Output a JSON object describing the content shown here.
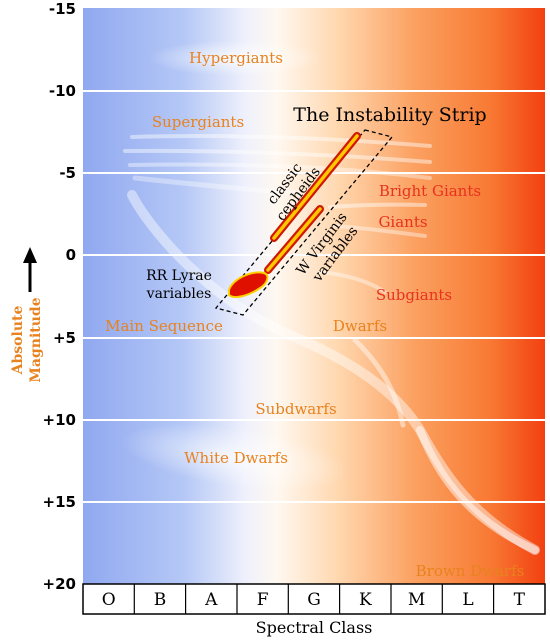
{
  "y_axis": {
    "title_line1": "Absolute",
    "title_line2": "Magnitude",
    "ticks": [
      "-15",
      "-10",
      "-5",
      "0",
      "+5",
      "+10",
      "+15",
      "+20"
    ]
  },
  "x_axis": {
    "title": "Spectral Class",
    "ticks": [
      "O",
      "B",
      "A",
      "F",
      "G",
      "K",
      "M",
      "L",
      "T"
    ]
  },
  "regions": {
    "hypergiants": "Hypergiants",
    "supergiants": "Supergiants",
    "bright_giants": "Bright Giants",
    "giants": "Giants",
    "subgiants": "Subgiants",
    "main_sequence": "Main Sequence",
    "dwarfs": "Dwarfs",
    "subdwarfs": "Subdwarfs",
    "white_dwarfs": "White Dwarfs",
    "brown_dwarfs": "Brown Dwarfs"
  },
  "instability_strip": {
    "title": "The Instability Strip",
    "cepheids_line1": "classic",
    "cepheids_line2": "cepheids",
    "wvir_line1": "W Virginis",
    "wvir_line2": "variables",
    "rrlyr_line1": "RR Lyrae",
    "rrlyr_line2": "variables"
  },
  "colors": {
    "hot_blue": "#90a8f0",
    "cool_red": "#f24010",
    "label_orange": "#e8821e",
    "label_red": "#e8321e"
  }
}
